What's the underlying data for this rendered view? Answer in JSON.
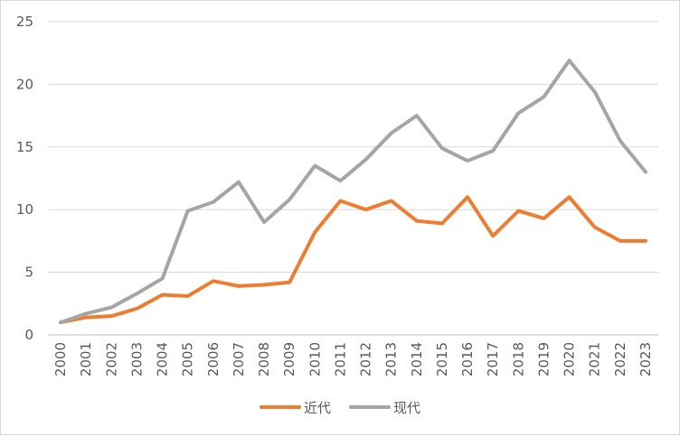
{
  "chart_data": {
    "type": "line",
    "title": "",
    "xlabel": "",
    "ylabel": "",
    "ylim": [
      0,
      25
    ],
    "yticks": [
      0,
      5,
      10,
      15,
      20,
      25
    ],
    "grid": "horizontal",
    "legend_position": "bottom",
    "categories": [
      "2000",
      "2001",
      "2002",
      "2003",
      "2004",
      "2005",
      "2006",
      "2007",
      "2008",
      "2009",
      "2010",
      "2011",
      "2012",
      "2013",
      "2014",
      "2015",
      "2016",
      "2017",
      "2018",
      "2019",
      "2020",
      "2021",
      "2022",
      "2023"
    ],
    "series": [
      {
        "name": "近代",
        "color": "#ed7d31",
        "values": [
          1.0,
          1.4,
          1.5,
          2.1,
          3.2,
          3.1,
          4.3,
          3.9,
          4.0,
          4.2,
          8.2,
          10.7,
          10.0,
          10.7,
          9.1,
          8.9,
          11.0,
          7.9,
          9.9,
          9.3,
          11.0,
          8.6,
          7.5,
          7.5
        ]
      },
      {
        "name": "现代",
        "color": "#a5a5a5",
        "values": [
          1.0,
          1.7,
          2.2,
          3.3,
          4.5,
          9.9,
          10.6,
          12.2,
          9.0,
          10.8,
          13.5,
          12.3,
          14.0,
          16.1,
          17.5,
          14.9,
          13.9,
          14.7,
          17.7,
          19.0,
          21.9,
          19.4,
          15.5,
          13.0
        ]
      }
    ]
  }
}
